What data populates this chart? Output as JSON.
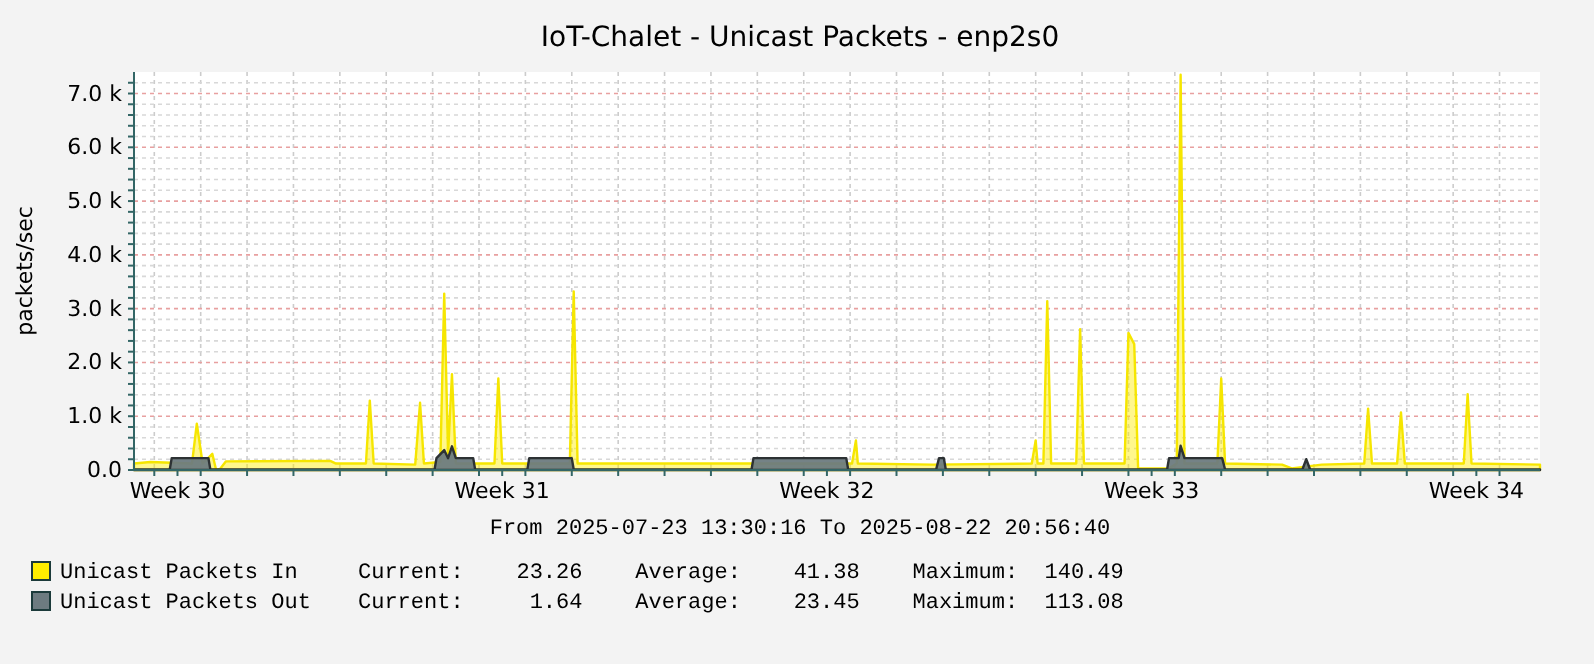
{
  "chart_data": {
    "type": "area",
    "title": "IoT-Chalet - Unicast Packets - enp2s0",
    "ylabel": "packets/sec",
    "annotations": [
      "From 2025-07-23 13:30:16 To 2025-08-22 20:56:40",
      "Current:    23.26    Average:    41.38    Maximum:  140.49",
      "Current:     1.64    Average:    23.45    Maximum:  113.08"
    ],
    "xlim": [
      "2025-07-23T13:30",
      "2025-08-22T20:56"
    ],
    "xticks": [
      {
        "value": "2025-07-24T12:00",
        "label": "Week 30"
      },
      {
        "value": "2025-07-31T12:00",
        "label": "Week 31"
      },
      {
        "value": "2025-08-07T12:00",
        "label": "Week 32"
      },
      {
        "value": "2025-08-14T12:00",
        "label": "Week 33"
      },
      {
        "value": "2025-08-21T12:00",
        "label": "Week 34"
      },
      {
        "value": "2025-07-24",
        "label": null
      },
      {
        "value": "2025-07-25",
        "label": null
      },
      {
        "value": "2025-07-26",
        "label": null
      },
      {
        "value": "2025-07-27",
        "label": null
      },
      {
        "value": "2025-07-28",
        "label": null
      },
      {
        "value": "2025-07-29",
        "label": null
      },
      {
        "value": "2025-07-30",
        "label": null
      },
      {
        "value": "2025-07-31",
        "label": null
      },
      {
        "value": "2025-08-01",
        "label": null
      },
      {
        "value": "2025-08-02",
        "label": null
      },
      {
        "value": "2025-08-03",
        "label": null
      },
      {
        "value": "2025-08-04",
        "label": null
      },
      {
        "value": "2025-08-05",
        "label": null
      },
      {
        "value": "2025-08-06",
        "label": null
      },
      {
        "value": "2025-08-07",
        "label": null
      },
      {
        "value": "2025-08-08",
        "label": null
      },
      {
        "value": "2025-08-09",
        "label": null
      },
      {
        "value": "2025-08-10",
        "label": null
      },
      {
        "value": "2025-08-11",
        "label": null
      },
      {
        "value": "2025-08-12",
        "label": null
      },
      {
        "value": "2025-08-13",
        "label": null
      },
      {
        "value": "2025-08-14",
        "label": null
      },
      {
        "value": "2025-08-15",
        "label": null
      },
      {
        "value": "2025-08-16",
        "label": null
      },
      {
        "value": "2025-08-17",
        "label": null
      },
      {
        "value": "2025-08-18",
        "label": null
      },
      {
        "value": "2025-08-19",
        "label": null
      },
      {
        "value": "2025-08-20",
        "label": null
      },
      {
        "value": "2025-08-21",
        "label": null
      },
      {
        "value": "2025-08-22",
        "label": null
      }
    ],
    "ylim": [
      0,
      7400
    ],
    "yticks": [
      {
        "value": 0,
        "label": "0.0"
      },
      {
        "value": 1000,
        "label": "1.0 k"
      },
      {
        "value": 2000,
        "label": "2.0 k"
      },
      {
        "value": 3000,
        "label": "3.0 k"
      },
      {
        "value": 4000,
        "label": "4.0 k"
      },
      {
        "value": 5000,
        "label": "5.0 k"
      },
      {
        "value": 6000,
        "label": "6.0 k"
      },
      {
        "value": 7000,
        "label": "7.0 k"
      },
      {
        "value": 200,
        "label": null
      },
      {
        "value": 400,
        "label": null
      },
      {
        "value": 600,
        "label": null
      },
      {
        "value": 800,
        "label": null
      },
      {
        "value": 1200,
        "label": null
      },
      {
        "value": 1400,
        "label": null
      },
      {
        "value": 1600,
        "label": null
      },
      {
        "value": 1800,
        "label": null
      },
      {
        "value": 2200,
        "label": null
      },
      {
        "value": 2400,
        "label": null
      },
      {
        "value": 2600,
        "label": null
      },
      {
        "value": 2800,
        "label": null
      },
      {
        "value": 3200,
        "label": null
      },
      {
        "value": 3400,
        "label": null
      },
      {
        "value": 3600,
        "label": null
      },
      {
        "value": 3800,
        "label": null
      },
      {
        "value": 4200,
        "label": null
      },
      {
        "value": 4400,
        "label": null
      },
      {
        "value": 4600,
        "label": null
      },
      {
        "value": 4800,
        "label": null
      },
      {
        "value": 5200,
        "label": null
      },
      {
        "value": 5400,
        "label": null
      },
      {
        "value": 5600,
        "label": null
      },
      {
        "value": 5800,
        "label": null
      },
      {
        "value": 6200,
        "label": null
      },
      {
        "value": 6400,
        "label": null
      },
      {
        "value": 6600,
        "label": null
      },
      {
        "value": 6800,
        "label": null
      },
      {
        "value": 7200,
        "label": null
      }
    ],
    "grid": true,
    "legend": "bottom left",
    "series": [
      {
        "name": "Unicast Packets In",
        "color": "#ffee00",
        "x": [
          "2025-07-23T13:30",
          "2025-07-23T22:00",
          "2025-07-24T19:30",
          "2025-07-24T22:00",
          "2025-07-25T01:00",
          "2025-07-25T06:00",
          "2025-07-25T08:00",
          "2025-07-25T10:00",
          "2025-07-25T13:00",
          "2025-07-27T19:00",
          "2025-07-27T22:00",
          "2025-07-28T13:30",
          "2025-07-28T15:30",
          "2025-07-28T17:30",
          "2025-07-29T15:00",
          "2025-07-29T17:30",
          "2025-07-29T19:30",
          "2025-07-30T04:00",
          "2025-07-30T06:00",
          "2025-07-30T08:00",
          "2025-07-30T10:00",
          "2025-07-30T12:00",
          "2025-07-31T08:00",
          "2025-07-31T10:00",
          "2025-07-31T12:00",
          "2025-08-01T23:00",
          "2025-08-02T01:00",
          "2025-08-02T03:00",
          "2025-08-08T01:00",
          "2025-08-08T03:00",
          "2025-08-08T04:00",
          "2025-08-09T18:30",
          "2025-08-11T22:00",
          "2025-08-12T00:00",
          "2025-08-12T01:00",
          "2025-08-12T04:00",
          "2025-08-12T06:00",
          "2025-08-12T08:00",
          "2025-08-12T21:00",
          "2025-08-12T23:00",
          "2025-08-13T01:00",
          "2025-08-13T22:00",
          "2025-08-14T00:00",
          "2025-08-14T03:00",
          "2025-08-14T05:00",
          "2025-08-14T21:00",
          "2025-08-15T01:00",
          "2025-08-15T03:00",
          "2025-08-15T05:00",
          "2025-08-15T22:00",
          "2025-08-16T00:00",
          "2025-08-16T02:00",
          "2025-08-17T07:30",
          "2025-08-17T12:30",
          "2025-08-18T04:00",
          "2025-08-19T02:00",
          "2025-08-19T04:00",
          "2025-08-19T06:00",
          "2025-08-19T19:00",
          "2025-08-19T21:00",
          "2025-08-19T23:00",
          "2025-08-21T05:30",
          "2025-08-21T07:30",
          "2025-08-21T09:30",
          "2025-08-22T20:56"
        ],
        "values": [
          120,
          150,
          120,
          860,
          120,
          300,
          0,
          20,
          160,
          170,
          120,
          120,
          1290,
          120,
          100,
          1250,
          120,
          150,
          3280,
          300,
          1780,
          120,
          120,
          1700,
          120,
          120,
          3320,
          120,
          120,
          550,
          120,
          100,
          120,
          550,
          120,
          120,
          3140,
          120,
          120,
          2620,
          120,
          120,
          2550,
          2340,
          30,
          30,
          120,
          7350,
          120,
          120,
          1700,
          120,
          100,
          30,
          100,
          120,
          1140,
          120,
          120,
          1070,
          120,
          120,
          1410,
          120,
          100
        ]
      },
      {
        "name": "Unicast Packets Out",
        "color": "#6d7b80",
        "x": [
          "2025-07-23T13:30",
          "2025-07-24T08:00",
          "2025-07-24T09:00",
          "2025-07-25T04:00",
          "2025-07-25T05:00",
          "2025-07-30T01:00",
          "2025-07-30T02:00",
          "2025-07-30T06:00",
          "2025-07-30T08:00",
          "2025-07-30T10:00",
          "2025-07-30T12:00",
          "2025-07-30T21:00",
          "2025-07-30T22:00",
          "2025-08-01T01:00",
          "2025-08-01T02:00",
          "2025-08-02T00:00",
          "2025-08-02T01:00",
          "2025-08-05T21:00",
          "2025-08-05T22:00",
          "2025-08-07T22:00",
          "2025-08-07T23:00",
          "2025-08-09T20:30",
          "2025-08-09T22:00",
          "2025-08-10T00:30",
          "2025-08-10T01:30",
          "2025-08-14T20:00",
          "2025-08-14T21:00",
          "2025-08-15T02:00",
          "2025-08-15T03:00",
          "2025-08-15T05:00",
          "2025-08-16T00:30",
          "2025-08-16T02:00",
          "2025-08-17T18:00",
          "2025-08-17T20:00",
          "2025-08-17T22:00",
          "2025-08-22T20:56"
        ],
        "values": [
          10,
          10,
          220,
          220,
          10,
          10,
          220,
          370,
          220,
          440,
          220,
          220,
          10,
          10,
          220,
          220,
          10,
          10,
          220,
          220,
          10,
          10,
          220,
          220,
          10,
          10,
          220,
          220,
          450,
          220,
          220,
          10,
          10,
          200,
          10,
          10
        ]
      }
    ]
  }
}
